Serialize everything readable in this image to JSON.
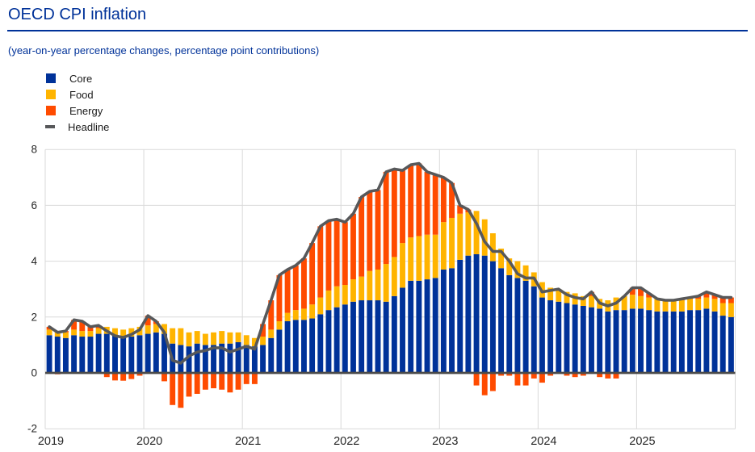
{
  "header": {
    "title": "OECD CPI inflation",
    "subtitle": "(year-on-year percentage changes, percentage point contributions)",
    "accent_color": "#003299"
  },
  "chart_data": {
    "type": "bar",
    "stacked": true,
    "title": "OECD CPI inflation",
    "xlabel": "",
    "ylabel": "",
    "ylim": [
      -2,
      8
    ],
    "grid": true,
    "legend_position": "top-left",
    "x_ticks": [
      "2019",
      "2020",
      "2021",
      "2022",
      "2023",
      "2024",
      "2025"
    ],
    "y_ticks": [
      8,
      6,
      4,
      2,
      0,
      -2
    ],
    "months": [
      "2019-01",
      "2019-02",
      "2019-03",
      "2019-04",
      "2019-05",
      "2019-06",
      "2019-07",
      "2019-08",
      "2019-09",
      "2019-10",
      "2019-11",
      "2019-12",
      "2020-01",
      "2020-02",
      "2020-03",
      "2020-04",
      "2020-05",
      "2020-06",
      "2020-07",
      "2020-08",
      "2020-09",
      "2020-10",
      "2020-11",
      "2020-12",
      "2021-01",
      "2021-02",
      "2021-03",
      "2021-04",
      "2021-05",
      "2021-06",
      "2021-07",
      "2021-08",
      "2021-09",
      "2021-10",
      "2021-11",
      "2021-12",
      "2022-01",
      "2022-02",
      "2022-03",
      "2022-04",
      "2022-05",
      "2022-06",
      "2022-07",
      "2022-08",
      "2022-09",
      "2022-10",
      "2022-11",
      "2022-12",
      "2023-01",
      "2023-02",
      "2023-03",
      "2023-04",
      "2023-05",
      "2023-06",
      "2023-07",
      "2023-08",
      "2023-09",
      "2023-10",
      "2023-11",
      "2023-12",
      "2024-01",
      "2024-02",
      "2024-03",
      "2024-04",
      "2024-05",
      "2024-06",
      "2024-07",
      "2024-08",
      "2024-09",
      "2024-10",
      "2024-11",
      "2024-12",
      "2025-01",
      "2025-02",
      "2025-03",
      "2025-04",
      "2025-05",
      "2025-06",
      "2025-07",
      "2025-08",
      "2025-09",
      "2025-10",
      "2025-11",
      "2025-12"
    ],
    "series": [
      {
        "name": "Core",
        "type": "bar",
        "color": "#003299",
        "values": [
          1.35,
          1.3,
          1.25,
          1.35,
          1.3,
          1.3,
          1.4,
          1.4,
          1.35,
          1.3,
          1.3,
          1.35,
          1.4,
          1.45,
          1.4,
          1.05,
          1.0,
          0.95,
          1.05,
          1.0,
          1.0,
          1.05,
          1.05,
          1.1,
          1.0,
          0.95,
          1.0,
          1.25,
          1.55,
          1.85,
          1.9,
          1.9,
          1.95,
          2.1,
          2.25,
          2.35,
          2.45,
          2.55,
          2.6,
          2.6,
          2.6,
          2.55,
          2.75,
          3.05,
          3.3,
          3.3,
          3.35,
          3.4,
          3.7,
          3.75,
          4.05,
          4.2,
          4.25,
          4.2,
          4.0,
          3.75,
          3.5,
          3.4,
          3.3,
          3.1,
          2.7,
          2.6,
          2.55,
          2.5,
          2.45,
          2.4,
          2.35,
          2.3,
          2.2,
          2.25,
          2.25,
          2.3,
          2.3,
          2.25,
          2.2,
          2.2,
          2.2,
          2.2,
          2.25,
          2.25,
          2.3,
          2.2,
          2.05,
          2.0
        ]
      },
      {
        "name": "Food",
        "type": "bar",
        "color": "#FFB400",
        "values": [
          0.2,
          0.2,
          0.2,
          0.2,
          0.2,
          0.2,
          0.2,
          0.25,
          0.25,
          0.25,
          0.3,
          0.3,
          0.3,
          0.3,
          0.35,
          0.55,
          0.6,
          0.5,
          0.45,
          0.4,
          0.45,
          0.45,
          0.4,
          0.35,
          0.35,
          0.3,
          0.3,
          0.3,
          0.3,
          0.3,
          0.35,
          0.4,
          0.5,
          0.6,
          0.7,
          0.75,
          0.7,
          0.8,
          0.85,
          1.05,
          1.1,
          1.35,
          1.4,
          1.6,
          1.55,
          1.6,
          1.6,
          1.55,
          1.7,
          1.8,
          1.65,
          1.55,
          1.55,
          1.3,
          1.0,
          0.7,
          0.6,
          0.6,
          0.55,
          0.5,
          0.55,
          0.45,
          0.45,
          0.4,
          0.4,
          0.35,
          0.4,
          0.35,
          0.4,
          0.45,
          0.5,
          0.5,
          0.45,
          0.45,
          0.45,
          0.4,
          0.4,
          0.4,
          0.4,
          0.4,
          0.4,
          0.45,
          0.45,
          0.5
        ]
      },
      {
        "name": "Energy",
        "type": "bar",
        "color": "#FF4B00",
        "values": [
          0.1,
          -0.05,
          0.05,
          0.35,
          0.35,
          0.15,
          0.1,
          -0.15,
          -0.27,
          -0.28,
          -0.22,
          -0.1,
          0.35,
          0.1,
          -0.3,
          -1.15,
          -1.25,
          -0.85,
          -0.75,
          -0.6,
          -0.55,
          -0.6,
          -0.7,
          -0.6,
          -0.4,
          -0.4,
          0.45,
          1.05,
          1.65,
          1.55,
          1.6,
          1.8,
          2.2,
          2.55,
          2.5,
          2.4,
          2.25,
          2.35,
          2.85,
          2.85,
          2.85,
          3.3,
          3.15,
          2.6,
          2.6,
          2.6,
          2.25,
          2.15,
          1.6,
          1.25,
          0.3,
          0.1,
          -0.45,
          -0.8,
          -0.65,
          -0.1,
          -0.1,
          -0.45,
          -0.45,
          -0.2,
          -0.35,
          -0.1,
          0.0,
          -0.1,
          -0.15,
          -0.1,
          0.15,
          -0.15,
          -0.2,
          -0.2,
          0.0,
          0.25,
          0.3,
          0.15,
          0.0,
          0.0,
          0.0,
          0.05,
          0.05,
          0.1,
          0.2,
          0.15,
          0.2,
          0.2
        ]
      },
      {
        "name": "Headline",
        "type": "line",
        "color": "#57585A",
        "values": [
          1.65,
          1.45,
          1.5,
          1.9,
          1.85,
          1.65,
          1.7,
          1.5,
          1.33,
          1.27,
          1.38,
          1.55,
          2.05,
          1.85,
          1.45,
          0.45,
          0.35,
          0.6,
          0.75,
          0.8,
          0.9,
          0.9,
          0.75,
          0.85,
          0.95,
          0.85,
          1.75,
          2.6,
          3.5,
          3.7,
          3.85,
          4.1,
          4.65,
          5.25,
          5.45,
          5.5,
          5.4,
          5.7,
          6.3,
          6.5,
          6.55,
          7.2,
          7.3,
          7.25,
          7.45,
          7.5,
          7.2,
          7.1,
          7.0,
          6.8,
          6.0,
          5.85,
          5.35,
          4.7,
          4.35,
          4.35,
          4.0,
          3.55,
          3.4,
          3.4,
          2.9,
          2.95,
          3.0,
          2.8,
          2.7,
          2.65,
          2.9,
          2.5,
          2.4,
          2.5,
          2.75,
          3.05,
          3.05,
          2.85,
          2.65,
          2.6,
          2.6,
          2.65,
          2.7,
          2.75,
          2.9,
          2.8,
          2.7,
          2.7
        ]
      }
    ],
    "colors": {
      "grid": "#D9D9D9",
      "zero_axis": "#4A4A4A",
      "tick_text": "#262626"
    }
  }
}
